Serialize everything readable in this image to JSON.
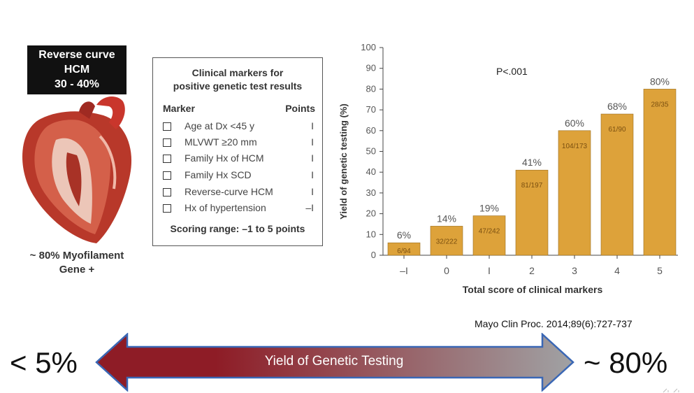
{
  "left_panel": {
    "box_lines": [
      "Reverse curve",
      "HCM",
      "30 - 40%"
    ],
    "caption_lines": [
      "~ 80% Myofilament",
      "Gene +"
    ]
  },
  "markers_box": {
    "title_lines": [
      "Clinical markers for",
      "positive genetic test results"
    ],
    "marker_header": "Marker",
    "points_header": "Points",
    "rows": [
      {
        "label": "Age at Dx <45 y",
        "points": "I"
      },
      {
        "label": "MLVWT ≥20 mm",
        "points": "I"
      },
      {
        "label": "Family Hx of HCM",
        "points": "I"
      },
      {
        "label": "Family Hx SCD",
        "points": "I"
      },
      {
        "label": "Reverse-curve HCM",
        "points": "I"
      },
      {
        "label": "Hx of hypertension",
        "points": "–I"
      }
    ],
    "scoring_range": "Scoring range: –1 to 5 points"
  },
  "chart_data": {
    "type": "bar",
    "categories": [
      "–I",
      "0",
      "I",
      "2",
      "3",
      "4",
      "5"
    ],
    "values": [
      6,
      14,
      19,
      41,
      60,
      68,
      80
    ],
    "value_labels": [
      "6%",
      "14%",
      "19%",
      "41%",
      "60%",
      "68%",
      "80%"
    ],
    "inner_labels": [
      "6/94",
      "32/222",
      "47/242",
      "81/197",
      "104/173",
      "61/90",
      "28/35"
    ],
    "xlabel": "Total score of clinical markers",
    "ylabel": "Yield of genetic testing (%)",
    "ylim": [
      0,
      100
    ],
    "yticks": [
      0,
      10,
      20,
      30,
      40,
      50,
      60,
      70,
      80,
      90,
      100
    ],
    "annotation": "P<.001",
    "bar_color": "#dda23a",
    "grid": false
  },
  "citation": "Mayo Clin Proc. 2014;89(6):727-737",
  "bottom": {
    "left_value": "< 5%",
    "right_value": "~ 80%",
    "arrow_label": "Yield of Genetic Testing",
    "arrow_colors": [
      "#8e1c26",
      "#a0a2a4"
    ],
    "arrow_border": "#3a67b5"
  }
}
